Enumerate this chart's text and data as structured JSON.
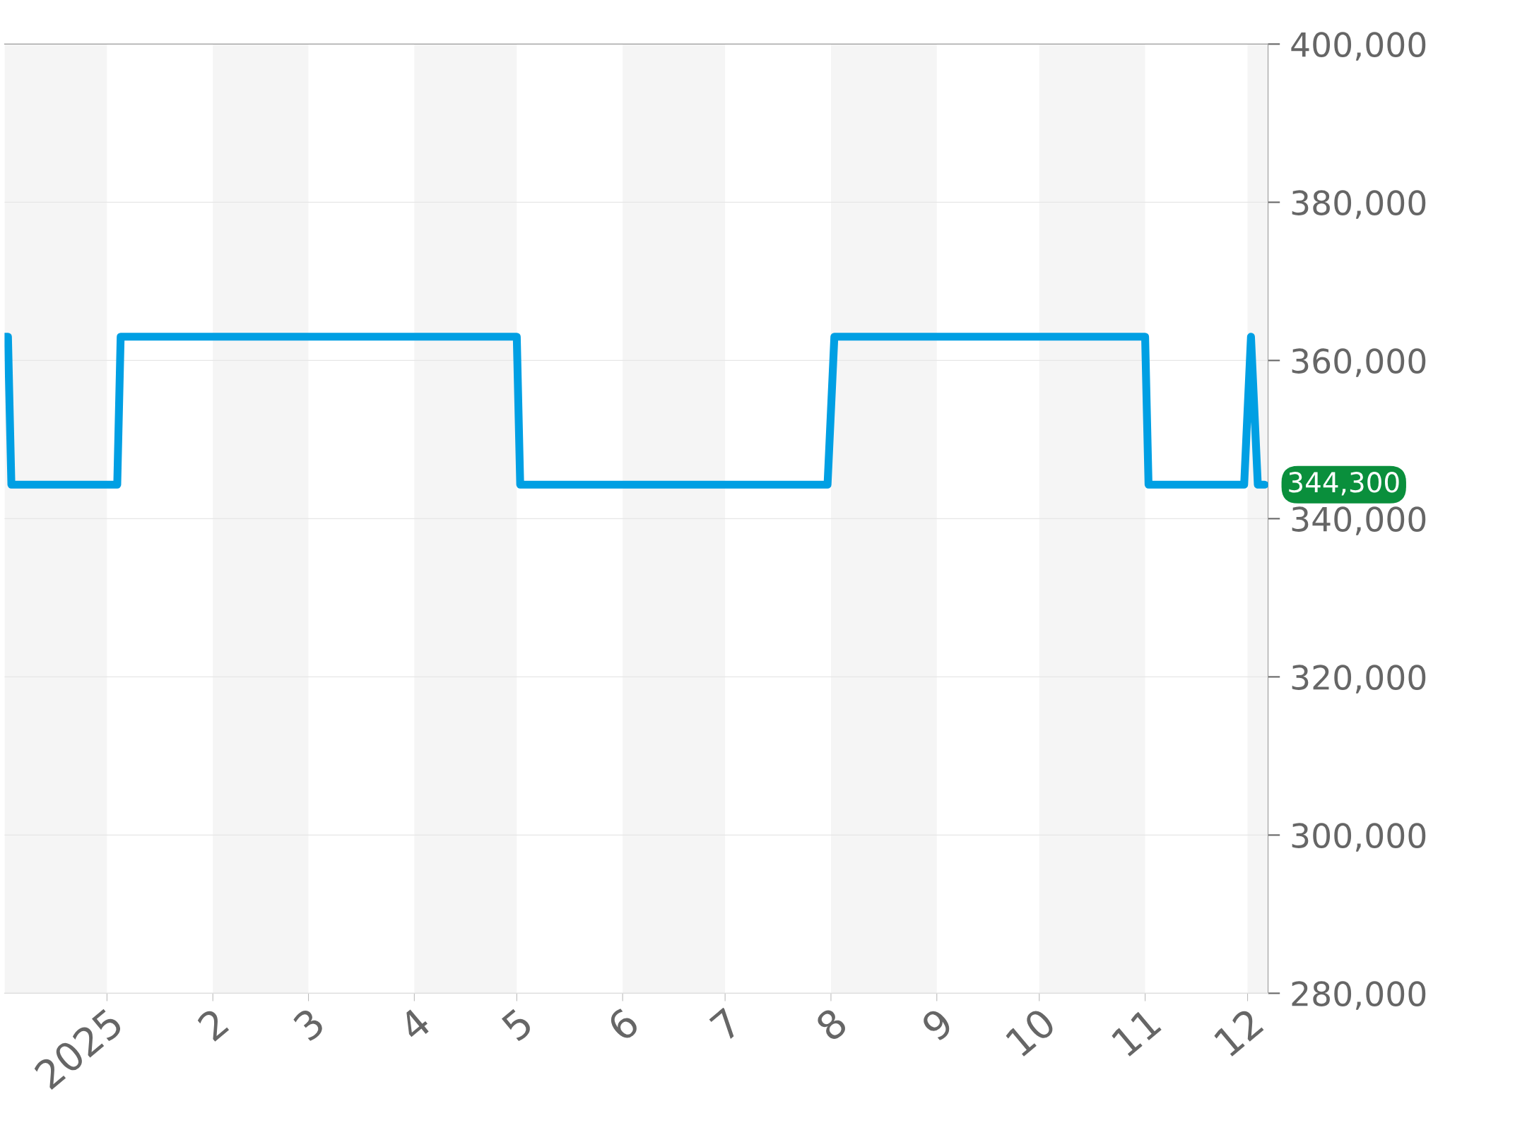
{
  "chart_data": {
    "type": "line",
    "x": [
      "2024-12-02",
      "2024-12-03",
      "2024-12-04",
      "2025-01-04",
      "2025-01-05",
      "2025-05-01",
      "2025-05-02",
      "2025-07-31",
      "2025-08-02",
      "2025-11-01",
      "2025-11-02",
      "2025-11-30",
      "2025-12-02",
      "2025-12-04",
      "2025-12-06"
    ],
    "series": [
      {
        "color": "#009fe3",
        "values": [
          363000,
          363000,
          344300,
          344300,
          363000,
          363000,
          344300,
          344300,
          363000,
          363000,
          344300,
          344300,
          363000,
          344300,
          344300
        ]
      }
    ],
    "xlim": [
      "2024-12-02",
      "2025-12-07"
    ],
    "xticks": [
      {
        "value": "2025-01-01",
        "label": "2025"
      },
      {
        "value": "2025-02-01",
        "label": "2"
      },
      {
        "value": "2025-03-01",
        "label": "3"
      },
      {
        "value": "2025-04-01",
        "label": "4"
      },
      {
        "value": "2025-05-01",
        "label": "5"
      },
      {
        "value": "2025-06-01",
        "label": "6"
      },
      {
        "value": "2025-07-01",
        "label": "7"
      },
      {
        "value": "2025-08-01",
        "label": "8"
      },
      {
        "value": "2025-09-01",
        "label": "9"
      },
      {
        "value": "2025-10-01",
        "label": "10"
      },
      {
        "value": "2025-11-01",
        "label": "11"
      },
      {
        "value": "2025-12-01",
        "label": "12"
      }
    ],
    "ylim": [
      280000,
      400000
    ],
    "yticks": [
      {
        "value": 280000,
        "label": "280,000"
      },
      {
        "value": 300000,
        "label": "300,000"
      },
      {
        "value": 320000,
        "label": "320,000"
      },
      {
        "value": 340000,
        "label": "340,000"
      },
      {
        "value": 360000,
        "label": "360,000"
      },
      {
        "value": 380000,
        "label": "380,000"
      },
      {
        "value": 400000,
        "label": "400,000"
      }
    ],
    "bands": [
      {
        "axis": "x",
        "from": "2024-12-02",
        "to": "2025-01-01",
        "color": "#f5f5f5"
      },
      {
        "axis": "x",
        "from": "2025-02-01",
        "to": "2025-03-01",
        "color": "#f5f5f5"
      },
      {
        "axis": "x",
        "from": "2025-04-01",
        "to": "2025-05-01",
        "color": "#f5f5f5"
      },
      {
        "axis": "x",
        "from": "2025-06-01",
        "to": "2025-07-01",
        "color": "#f5f5f5"
      },
      {
        "axis": "x",
        "from": "2025-08-01",
        "to": "2025-09-01",
        "color": "#f5f5f5"
      },
      {
        "axis": "x",
        "from": "2025-10-01",
        "to": "2025-11-01",
        "color": "#f5f5f5"
      },
      {
        "axis": "x",
        "from": "2025-12-01",
        "to": "2025-12-07",
        "color": "#f5f5f5"
      }
    ],
    "annotations": [
      {
        "text": "344,300",
        "x": "2025-12-06",
        "y": 344300
      }
    ],
    "grid": "y",
    "line_style": "solid",
    "marker": "none",
    "legend": false
  }
}
